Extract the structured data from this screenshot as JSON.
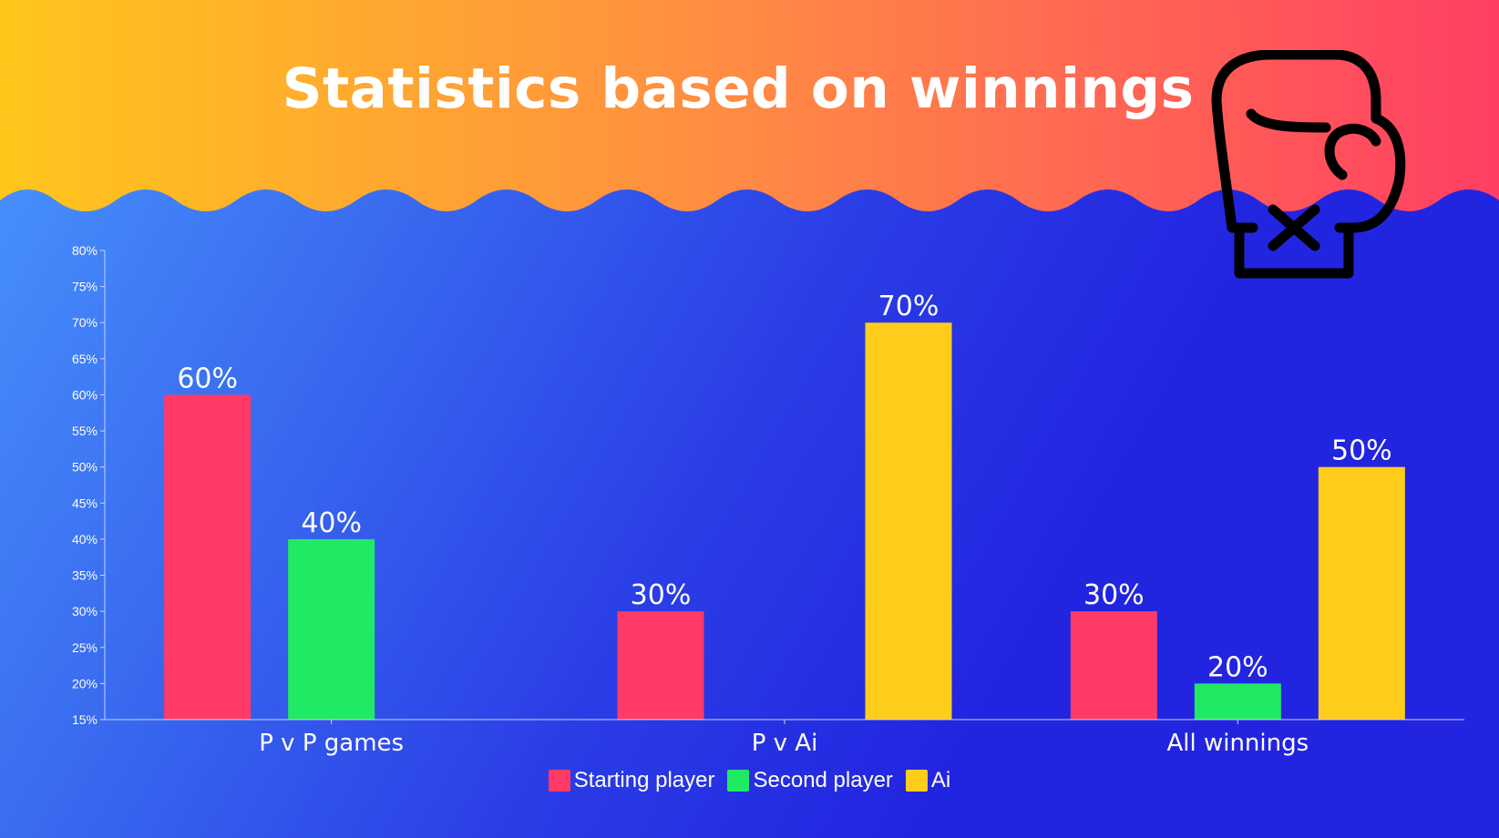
{
  "title": "Statistics based on winnings",
  "colors": {
    "header_gradient": [
      "#ffc61c",
      "#ff8a44",
      "#ff3f63"
    ],
    "starting_player": "#ff3a66",
    "second_player": "#20ea64",
    "ai": "#ffcc1c",
    "axis": "#c8d4ff",
    "text": "#ffffff"
  },
  "icons": {
    "header": "boxing-glove-icon"
  },
  "legend": [
    {
      "label": "Starting player",
      "color": "#ff3a66"
    },
    {
      "label": "Second player",
      "color": "#20ea64"
    },
    {
      "label": "Ai",
      "color": "#ffcc1c"
    }
  ],
  "chart_data": {
    "type": "bar",
    "title": "",
    "xlabel": "",
    "ylabel": "",
    "categories": [
      "P v P games",
      "P v Ai",
      "All winnings"
    ],
    "ylim": [
      15,
      80
    ],
    "ytick_step": 5,
    "ytick_format": "{}%",
    "grid": false,
    "legend_position": "bottom",
    "series": [
      {
        "name": "Starting player",
        "color": "#ff3a66",
        "values": [
          60,
          30,
          30
        ],
        "labels": [
          "60%",
          "30%",
          "30%"
        ]
      },
      {
        "name": "Second player",
        "color": "#20ea64",
        "values": [
          40,
          null,
          20
        ],
        "labels": [
          "40%",
          "",
          "20%"
        ]
      },
      {
        "name": "Ai",
        "color": "#ffcc1c",
        "values": [
          null,
          70,
          50
        ],
        "labels": [
          "",
          "70%",
          "50%"
        ]
      }
    ]
  }
}
